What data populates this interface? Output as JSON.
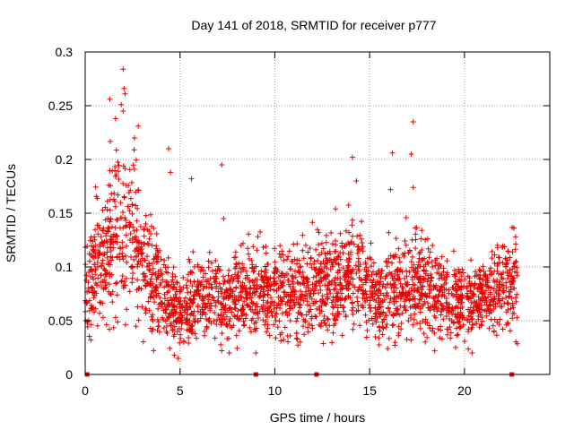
{
  "chart_data": {
    "type": "scatter",
    "title": "Day 141 of 2018, SRMTID for receiver p777",
    "xlabel": "GPS time / hours",
    "ylabel": "SRMTID / TECUs",
    "xlim": [
      0,
      24.5
    ],
    "ylim": [
      0,
      0.3
    ],
    "xticks": [
      0,
      5,
      10,
      15,
      20
    ],
    "yticks": [
      0,
      0.05,
      0.1,
      0.15,
      0.2,
      0.25,
      0.3
    ],
    "grid": true,
    "marker": "+",
    "series_color": "#e60000",
    "series_profile": {
      "x": [
        0,
        0.5,
        1.0,
        1.5,
        2.0,
        2.5,
        3.0,
        3.5,
        4.0,
        4.5,
        5.0,
        5.5,
        6.0,
        6.5,
        7.0,
        7.5,
        8.0,
        8.5,
        9.0,
        9.5,
        10.0,
        10.5,
        11.0,
        11.5,
        12.0,
        12.5,
        13.0,
        13.5,
        14.0,
        14.5,
        15.0,
        15.5,
        16.0,
        16.5,
        17.0,
        17.5,
        18.0,
        18.5,
        19.0,
        19.5,
        20.0,
        20.5,
        21.0,
        21.5,
        22.0,
        22.5
      ],
      "median_y": [
        0.08,
        0.105,
        0.105,
        0.13,
        0.135,
        0.13,
        0.105,
        0.09,
        0.075,
        0.065,
        0.06,
        0.065,
        0.075,
        0.075,
        0.07,
        0.065,
        0.075,
        0.08,
        0.075,
        0.075,
        0.08,
        0.08,
        0.075,
        0.075,
        0.085,
        0.09,
        0.085,
        0.08,
        0.09,
        0.09,
        0.08,
        0.07,
        0.075,
        0.08,
        0.08,
        0.085,
        0.08,
        0.075,
        0.07,
        0.07,
        0.065,
        0.07,
        0.07,
        0.075,
        0.085,
        0.085
      ]
    },
    "outliers": [
      {
        "x": 2.0,
        "y": 0.284
      },
      {
        "x": 2.05,
        "y": 0.266
      },
      {
        "x": 2.1,
        "y": 0.261
      },
      {
        "x": 1.3,
        "y": 0.256
      },
      {
        "x": 1.9,
        "y": 0.251
      },
      {
        "x": 2.0,
        "y": 0.245
      },
      {
        "x": 1.6,
        "y": 0.238
      },
      {
        "x": 2.8,
        "y": 0.231
      },
      {
        "x": 17.3,
        "y": 0.235
      },
      {
        "x": 2.6,
        "y": 0.22
      },
      {
        "x": 4.4,
        "y": 0.21
      },
      {
        "x": 17.2,
        "y": 0.205
      },
      {
        "x": 16.2,
        "y": 0.206
      },
      {
        "x": 14.1,
        "y": 0.202
      },
      {
        "x": 7.2,
        "y": 0.195
      },
      {
        "x": 4.5,
        "y": 0.188
      },
      {
        "x": 5.6,
        "y": 0.182
      },
      {
        "x": 14.3,
        "y": 0.18
      },
      {
        "x": 17.3,
        "y": 0.174
      },
      {
        "x": 16.1,
        "y": 0.172
      },
      {
        "x": 13.2,
        "y": 0.154
      },
      {
        "x": 7.3,
        "y": 0.145
      },
      {
        "x": 22.7,
        "y": 0.128
      },
      {
        "x": 4.9,
        "y": 0.015
      },
      {
        "x": 4.7,
        "y": 0.018
      },
      {
        "x": 7.6,
        "y": 0.02
      },
      {
        "x": 9.0,
        "y": 0.02
      },
      {
        "x": 20.4,
        "y": 0.02
      },
      {
        "x": 5.2,
        "y": 0.03
      },
      {
        "x": 0.3,
        "y": 0.032
      }
    ],
    "gap_markers_x": [
      0.1,
      9.0,
      12.2,
      22.5
    ]
  }
}
